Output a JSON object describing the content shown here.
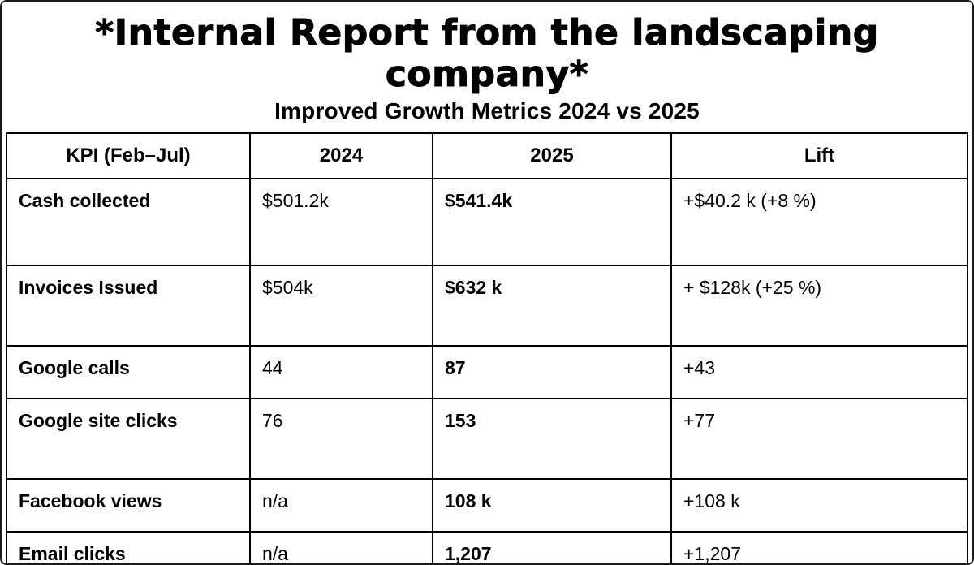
{
  "title": "*Internal Report from the landscaping company*",
  "subtitle": "Improved Growth Metrics 2024 vs 2025",
  "table": {
    "headers": [
      "KPI (Feb–Jul)",
      "2024",
      "2025",
      "Lift"
    ],
    "rows": [
      {
        "kpi": "Cash collected",
        "y2024": "$501.2k",
        "y2025": "$541.4k",
        "lift": "+$40.2 k (+8 %)"
      },
      {
        "kpi": "Invoices Issued",
        "y2024": "$504k",
        "y2025": "$632 k",
        "lift": "+ $128k (+25 %)"
      },
      {
        "kpi": "Google calls",
        "y2024": "44",
        "y2025": "87",
        "lift": "+43"
      },
      {
        "kpi": "Google site clicks",
        "y2024": "76",
        "y2025": "153",
        "lift": "+77"
      },
      {
        "kpi": "Facebook views",
        "y2024": "n/a",
        "y2025": "108 k",
        "lift": "+108 k"
      },
      {
        "kpi": "Email clicks",
        "y2024": "n/a",
        "y2025": "1,207",
        "lift": "+1,207"
      }
    ]
  }
}
